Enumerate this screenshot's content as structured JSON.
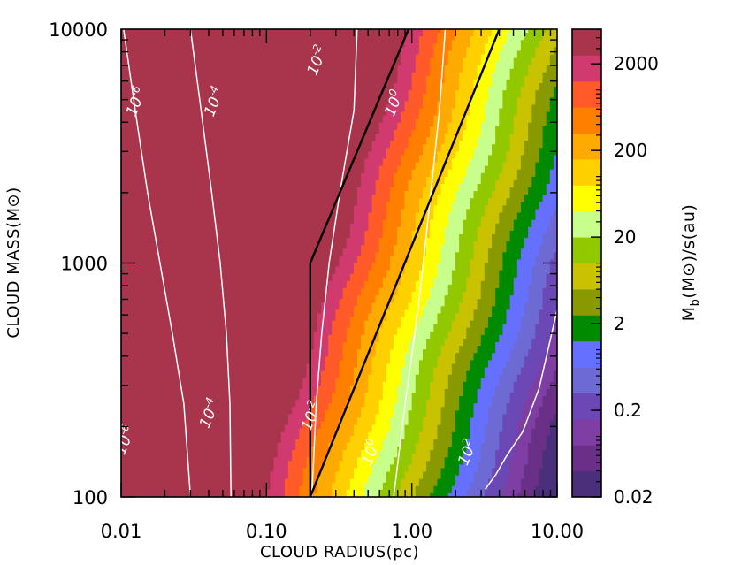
{
  "chart_data": {
    "type": "heatmap",
    "title": "",
    "xlabel": "CLOUD RADIUS(pc)",
    "ylabel_text": "CLOUD MASS(M",
    "ylabel_suffix": ")",
    "x_scale": "log",
    "y_scale": "log",
    "xlim": [
      0.01,
      10
    ],
    "ylim": [
      100,
      10000
    ],
    "x_ticks": [
      {
        "value": 0.01,
        "label": "0.01"
      },
      {
        "value": 0.1,
        "label": "0.10"
      },
      {
        "value": 1,
        "label": "1.00"
      },
      {
        "value": 10,
        "label": "10.00"
      }
    ],
    "y_ticks": [
      {
        "value": 100,
        "label": "100"
      },
      {
        "value": 1000,
        "label": "1000"
      },
      {
        "value": 10000,
        "label": "10000"
      }
    ],
    "colorbar": {
      "label_prefix": "M",
      "label_sub": "b",
      "label_mid": "(M",
      "label_suffix": ")/s(au)",
      "scale": "log",
      "levels": [
        0.02,
        0.0398,
        0.0794,
        0.158,
        0.317,
        0.631,
        1.26,
        2.52,
        5.02,
        10.0,
        20.0,
        39.9,
        79.6,
        159,
        317,
        632,
        1262,
        2518,
        5023
      ],
      "colors": [
        "#4a2f7a",
        "#6a2f86",
        "#7e3ea3",
        "#6b48b5",
        "#6e6ad4",
        "#6670ff",
        "#008a00",
        "#889a00",
        "#c8c200",
        "#92c800",
        "#c8ff8c",
        "#ffff00",
        "#ffd000",
        "#ffaa00",
        "#ff8000",
        "#ff5a28",
        "#d03a6e",
        "#a8354c"
      ],
      "ticks": [
        {
          "value": 0.02,
          "label": "0.02"
        },
        {
          "value": 0.2,
          "label": "0.2"
        },
        {
          "value": 2,
          "label": "2"
        },
        {
          "value": 20,
          "label": "20"
        },
        {
          "value": 200,
          "label": "200"
        },
        {
          "value": 2000,
          "label": "2000"
        }
      ]
    },
    "field": {
      "description_model": "log10(value) = 3.36 - 2.62*log10(R) + 1.30*(log10(M) - 4)",
      "intercept": 3.36,
      "radius_coeff": -2.62,
      "mass_coeff": 1.3,
      "mass_ref": 10000
    },
    "contours": [
      {
        "label_base": "10",
        "label_exp": "-6",
        "points": [
          [
            0.0104,
            10000
          ],
          [
            0.0125,
            4500
          ],
          [
            0.0152,
            2000
          ],
          [
            0.0185,
            1000
          ],
          [
            0.0225,
            500
          ],
          [
            0.027,
            250
          ],
          [
            0.03,
            100
          ]
        ]
      },
      {
        "label_base": "10",
        "label_exp": "-4",
        "points": [
          [
            0.03,
            10000
          ],
          [
            0.0355,
            4500
          ],
          [
            0.042,
            2000
          ],
          [
            0.048,
            1000
          ],
          [
            0.053,
            500
          ],
          [
            0.056,
            250
          ],
          [
            0.057,
            100
          ]
        ]
      },
      {
        "label_base": "10",
        "label_exp": "-2",
        "points": [
          [
            0.42,
            10000
          ],
          [
            0.4,
            4500
          ],
          [
            0.32,
            2000
          ],
          [
            0.27,
            1000
          ],
          [
            0.24,
            500
          ],
          [
            0.22,
            250
          ],
          [
            0.205,
            100
          ]
        ]
      },
      {
        "label_base": "10",
        "label_exp": "0",
        "points": [
          [
            1.7,
            10000
          ],
          [
            1.55,
            4500
          ],
          [
            1.35,
            2000
          ],
          [
            1.2,
            1000
          ],
          [
            1.05,
            500
          ],
          [
            0.9,
            250
          ],
          [
            0.75,
            100
          ]
        ]
      },
      {
        "label_base": "10",
        "label_exp": "2",
        "points": [
          [
            10.0,
            630
          ],
          [
            7.5,
            290
          ],
          [
            5.8,
            190
          ],
          [
            4.5,
            150
          ],
          [
            3.8,
            125
          ],
          [
            3.2,
            108
          ]
        ]
      }
    ],
    "contour_labels": [
      {
        "label_base": "10",
        "label_exp": "-6",
        "x": 0.0125,
        "y": 4200
      },
      {
        "label_base": "10",
        "label_exp": "-4",
        "x": 0.043,
        "y": 4200
      },
      {
        "label_base": "10",
        "label_exp": "-2",
        "x": 0.22,
        "y": 6300
      },
      {
        "label_base": "10",
        "label_exp": "0",
        "x": 0.75,
        "y": 4200
      },
      {
        "label_base": "10",
        "label_exp": "-6",
        "x": 0.0105,
        "y": 150
      },
      {
        "label_base": "10",
        "label_exp": "-4",
        "x": 0.04,
        "y": 195
      },
      {
        "label_base": "10",
        "label_exp": "-2",
        "x": 0.2,
        "y": 190
      },
      {
        "label_base": "10",
        "label_exp": "0",
        "x": 0.52,
        "y": 135
      },
      {
        "label_base": "10",
        "label_exp": "2",
        "x": 2.4,
        "y": 135
      }
    ],
    "boundary_lines": [
      {
        "points": [
          [
            0.2,
            100
          ],
          [
            0.2,
            1000
          ],
          [
            0.95,
            10000
          ]
        ]
      },
      {
        "points": [
          [
            0.2,
            100
          ],
          [
            4.0,
            10000
          ]
        ]
      }
    ]
  }
}
